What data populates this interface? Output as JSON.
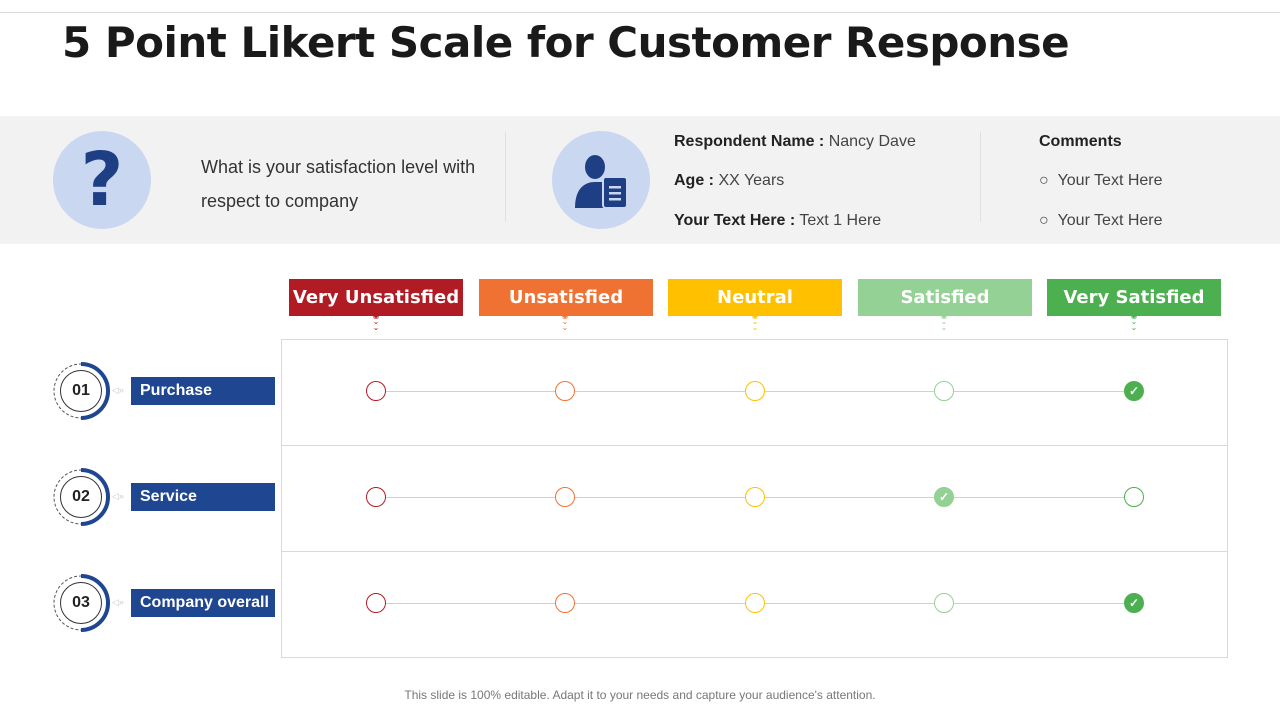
{
  "title": "5 Point Likert Scale for Customer Response",
  "question": {
    "icon": "question-mark-icon",
    "text": "What is your satisfaction level with respect to company"
  },
  "respondent": {
    "icon": "user-document-icon",
    "name_label": "Respondent Name :",
    "name": "Nancy Dave",
    "age_label": "Age :",
    "age": "XX Years",
    "extra_label": "Your Text Here :",
    "extra": "Text 1 Here"
  },
  "comments": {
    "title": "Comments",
    "items": [
      "Your Text Here",
      "Your Text Here"
    ]
  },
  "scale": [
    {
      "label": "Very Unsatisfied",
      "color": "#B11C24"
    },
    {
      "label": "Unsatisfied",
      "color": "#F07233"
    },
    {
      "label": "Neutral",
      "color": "#FFC000"
    },
    {
      "label": "Satisfied",
      "color": "#93D194"
    },
    {
      "label": "Very Satisfied",
      "color": "#4CAF50"
    }
  ],
  "rows": [
    {
      "num": "01",
      "label": "Purchase",
      "selected": "Very Satisfied"
    },
    {
      "num": "02",
      "label": "Service",
      "selected": "Satisfied"
    },
    {
      "num": "03",
      "label": "Company overall",
      "selected": "Very Satisfied"
    }
  ],
  "footer": "This slide is 100% editable. Adapt it to your needs and capture your audience's attention."
}
